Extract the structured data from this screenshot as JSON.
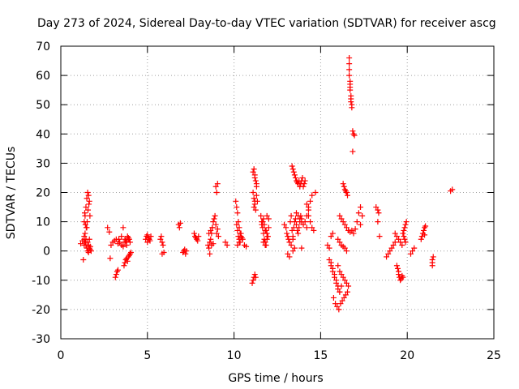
{
  "chart_data": {
    "type": "scatter",
    "title": "Day 273 of 2024, Sidereal Day-to-day VTEC variation (SDTVAR) for receiver ascg",
    "xlabel": "GPS time / hours",
    "ylabel": "SDTVAR / TECUs",
    "xlim": [
      0,
      25
    ],
    "ylim": [
      -30,
      70
    ],
    "x_ticks": [
      0,
      5,
      10,
      15,
      20,
      25
    ],
    "y_ticks": [
      -30,
      -20,
      -10,
      0,
      10,
      20,
      30,
      40,
      50,
      60,
      70
    ],
    "grid": true,
    "marker": "+",
    "marker_color": "#ff0000",
    "series": [
      {
        "name": "SDTVAR",
        "x": [
          1.15,
          1.25,
          1.35,
          1.35,
          1.4,
          1.45,
          1.5,
          1.55,
          1.6,
          1.65,
          1.38,
          1.42,
          1.47,
          1.52,
          1.57,
          1.62,
          1.68,
          1.35,
          1.4,
          1.45,
          1.5,
          1.55,
          1.6,
          1.65,
          1.7,
          1.3,
          1.35,
          1.45,
          1.55,
          1.6,
          1.65,
          1.7,
          1.75,
          1.4,
          1.5,
          2.7,
          2.8,
          2.85,
          2.9,
          3.0,
          3.1,
          3.2,
          3.3,
          3.15,
          3.2,
          3.25,
          3.3,
          3.35,
          3.4,
          3.5,
          3.6,
          3.6,
          3.7,
          3.75,
          3.8,
          3.85,
          3.9,
          3.95,
          3.65,
          3.7,
          3.75,
          3.8,
          3.85,
          3.9,
          3.95,
          4.0,
          4.05,
          3.5,
          3.6,
          3.7,
          3.8,
          3.9,
          4.0,
          4.9,
          4.95,
          5.0,
          5.05,
          5.1,
          5.15,
          5.2,
          5.0,
          5.1,
          5.75,
          5.8,
          5.85,
          5.9,
          5.95,
          5.85,
          6.8,
          6.85,
          6.9,
          7.05,
          7.1,
          7.15,
          7.2,
          7.25,
          7.7,
          7.75,
          7.8,
          7.85,
          7.9,
          7.95,
          8.5,
          8.55,
          8.6,
          8.65,
          8.7,
          8.75,
          8.8,
          8.85,
          8.9,
          8.95,
          9.0,
          9.05,
          9.1,
          8.95,
          9.0,
          9.05,
          8.6,
          8.7,
          8.8,
          8.55,
          8.65,
          8.75,
          9.5,
          9.6,
          10.1,
          10.15,
          10.2,
          10.25,
          10.3,
          10.35,
          10.4,
          10.15,
          10.2,
          10.25,
          10.3,
          10.35,
          10.45,
          10.4,
          10.2,
          10.3,
          10.5,
          10.6,
          10.7,
          11.05,
          11.1,
          11.15,
          11.2,
          11.25,
          11.1,
          11.15,
          11.2,
          11.25,
          11.3,
          11.35,
          11.15,
          11.2,
          11.25,
          11.3,
          11.1,
          11.2,
          11.3,
          11.15,
          11.2,
          11.55,
          11.6,
          11.65,
          11.7,
          11.75,
          11.8,
          11.85,
          11.9,
          11.95,
          11.6,
          11.7,
          11.8,
          11.9,
          12.0,
          11.65,
          11.75,
          11.85,
          11.95,
          11.7,
          11.8,
          11.9,
          12.0,
          12.9,
          13.0,
          13.05,
          13.1,
          13.15,
          13.2,
          13.25,
          13.3,
          13.35,
          13.4,
          13.45,
          13.5,
          13.55,
          13.6,
          13.65,
          13.7,
          13.75,
          13.8,
          13.85,
          13.9,
          13.1,
          13.2,
          13.3,
          13.4,
          13.35,
          13.4,
          13.45,
          13.5,
          13.55,
          13.6,
          13.65,
          13.7,
          13.75,
          13.8,
          13.85,
          13.9,
          13.95,
          14.0,
          14.05,
          14.1,
          13.6,
          13.7,
          13.8,
          13.9,
          14.0,
          14.1,
          14.2,
          14.3,
          13.5,
          13.4,
          13.9,
          14.2,
          14.3,
          14.4,
          14.5,
          14.2,
          14.3,
          14.4,
          14.5,
          14.6,
          14.7,
          15.4,
          15.5,
          15.6,
          15.7,
          15.5,
          15.6,
          15.7,
          15.8,
          15.9,
          16.0,
          16.1,
          16.2,
          15.6,
          15.7,
          15.8,
          15.9,
          16.0,
          16.1,
          15.75,
          15.85,
          15.95,
          16.05,
          16.15,
          16.25,
          16.35,
          16.45,
          16.55,
          16.0,
          16.1,
          16.2,
          16.3,
          16.4,
          16.5,
          16.6,
          16.1,
          16.2,
          16.3,
          16.4,
          16.5,
          16.6,
          16.0,
          16.1,
          16.2,
          16.3,
          16.4,
          16.5,
          16.3,
          16.35,
          16.4,
          16.45,
          16.5,
          16.55,
          16.65,
          16.65,
          16.65,
          16.65,
          16.7,
          16.7,
          16.7,
          16.7,
          16.75,
          16.75,
          16.75,
          16.8,
          16.8,
          16.85,
          16.9,
          16.95,
          16.85,
          16.6,
          16.7,
          16.8,
          16.9,
          17.0,
          17.1,
          17.2,
          17.3,
          17.4,
          17.3,
          18.2,
          18.3,
          18.3,
          18.35,
          18.4,
          18.8,
          18.9,
          19.0,
          19.1,
          19.2,
          19.3,
          19.4,
          19.45,
          19.5,
          19.5,
          19.55,
          19.6,
          19.65,
          19.7,
          19.75,
          19.3,
          19.4,
          19.5,
          19.6,
          19.7,
          19.8,
          19.85,
          19.9,
          19.95,
          19.75,
          19.8,
          19.85,
          19.9,
          20.2,
          20.3,
          20.4,
          20.8,
          20.85,
          20.9,
          20.95,
          21.0,
          21.05,
          21.0,
          21.45,
          21.45,
          21.45,
          21.5,
          22.5,
          22.6
        ],
        "y": [
          2.5,
          3.5,
          4.0,
          10.0,
          12.0,
          15.0,
          18.0,
          20.0,
          19.0,
          17.0,
          13.0,
          9.0,
          8.0,
          10.0,
          14.0,
          16.0,
          12.0,
          5.0,
          3.0,
          2.0,
          1.0,
          0.0,
          -0.5,
          1.0,
          0.5,
          -3.0,
          2.0,
          4.0,
          3.0,
          2.0,
          4.0,
          1.5,
          0.0,
          6.0,
          8.0,
          8.0,
          6.5,
          -2.5,
          2.0,
          3.0,
          3.5,
          4.0,
          2.5,
          -9.0,
          -8.0,
          -7.0,
          -6.5,
          4.0,
          3.0,
          5.0,
          8.0,
          2.0,
          4.0,
          3.5,
          3.0,
          5.0,
          4.5,
          4.0,
          -5.0,
          -4.0,
          -3.0,
          -2.5,
          -3.5,
          -2.0,
          -1.5,
          -1.0,
          -0.5,
          2.0,
          1.5,
          3.0,
          2.0,
          4.0,
          3.0,
          4.0,
          5.0,
          5.5,
          4.5,
          4.0,
          3.5,
          5.0,
          3.0,
          4.0,
          4.0,
          5.0,
          3.0,
          2.0,
          -0.5,
          -1.0,
          9.0,
          8.0,
          9.5,
          -0.5,
          0.0,
          0.5,
          -1.0,
          0.0,
          6.0,
          5.0,
          4.5,
          4.0,
          3.5,
          5.0,
          2.0,
          1.0,
          -1.0,
          4.0,
          6.0,
          8.0,
          10.0,
          11.0,
          12.0,
          9.0,
          6.0,
          7.5,
          5.0,
          22.0,
          20.0,
          23.0,
          3.0,
          2.0,
          2.5,
          6.0,
          7.0,
          8.0,
          3.0,
          2.0,
          17.0,
          15.0,
          13.0,
          10.0,
          8.0,
          6.0,
          5.0,
          9.0,
          7.0,
          5.0,
          4.0,
          3.0,
          4.5,
          6.0,
          2.0,
          3.0,
          4.0,
          2.0,
          1.5,
          -11.0,
          -10.0,
          -9.0,
          -8.0,
          -9.0,
          20.0,
          18.0,
          16.0,
          14.0,
          19.0,
          17.0,
          28.0,
          26.0,
          24.0,
          22.0,
          27.0,
          25.0,
          23.0,
          15.0,
          17.0,
          12.0,
          10.0,
          8.0,
          6.0,
          4.0,
          3.0,
          2.0,
          6.0,
          5.0,
          9.0,
          11.0,
          7.0,
          4.0,
          8.0,
          10.0,
          9.0,
          7.0,
          5.0,
          3.0,
          2.0,
          12.0,
          11.0,
          9.0,
          8.0,
          6.0,
          5.0,
          4.0,
          3.0,
          10.0,
          12.0,
          7.0,
          5.0,
          8.0,
          10.0,
          11.0,
          9.0,
          7.0,
          6.0,
          8.0,
          10.0,
          12.0,
          11.0,
          -1.0,
          -2.0,
          2.0,
          4.0,
          29.0,
          28.0,
          27.0,
          26.0,
          25.0,
          24.0,
          23.5,
          23.0,
          24.0,
          22.0,
          23.0,
          24.0,
          25.0,
          22.0,
          23.0,
          24.0,
          13.0,
          12.0,
          11.0,
          10.0,
          9.0,
          10.0,
          12.0,
          14.0,
          1.0,
          0.0,
          1.0,
          8.0,
          15.0,
          17.0,
          19.0,
          16.0,
          12.0,
          10.0,
          8.0,
          7.0,
          20.0,
          2.0,
          1.0,
          5.0,
          6.0,
          -3.0,
          -5.0,
          -7.0,
          -9.0,
          -11.0,
          -13.0,
          -14.0,
          -12.0,
          -4.0,
          -6.0,
          -8.0,
          -10.0,
          -12.0,
          -14.0,
          -16.0,
          -18.0,
          -19.0,
          -20.0,
          -18.0,
          -17.0,
          -16.0,
          -15.0,
          -14.0,
          -5.0,
          -7.0,
          -8.0,
          -9.0,
          -10.0,
          -11.0,
          -12.0,
          12.0,
          11.0,
          10.0,
          9.0,
          8.0,
          7.0,
          4.0,
          3.0,
          2.0,
          1.5,
          1.0,
          0.0,
          23.0,
          22.0,
          21.0,
          20.5,
          20.0,
          19.0,
          66.0,
          64.0,
          62.0,
          60.0,
          58.0,
          57.0,
          56.0,
          55.0,
          53.0,
          52.0,
          51.0,
          50.0,
          49.0,
          41.0,
          40.0,
          39.5,
          34.0,
          7.0,
          6.5,
          7.0,
          6.0,
          7.5,
          10.0,
          13.0,
          15.0,
          12.0,
          9.0,
          15.0,
          14.0,
          10.0,
          13.0,
          5.0,
          -2.0,
          -1.0,
          0.0,
          1.0,
          2.0,
          3.0,
          -5.0,
          -6.0,
          -7.0,
          -8.0,
          -9.0,
          -10.0,
          -9.5,
          -8.5,
          -9.0,
          6.0,
          5.0,
          4.0,
          3.0,
          2.0,
          7.0,
          8.0,
          9.0,
          10.0,
          6.0,
          5.0,
          4.0,
          3.0,
          -1.0,
          0.0,
          1.0,
          4.0,
          5.0,
          6.0,
          7.0,
          8.0,
          8.5,
          5.5,
          -5.0,
          -4.0,
          -3.0,
          -2.0,
          20.5,
          21.0
        ]
      }
    ]
  }
}
